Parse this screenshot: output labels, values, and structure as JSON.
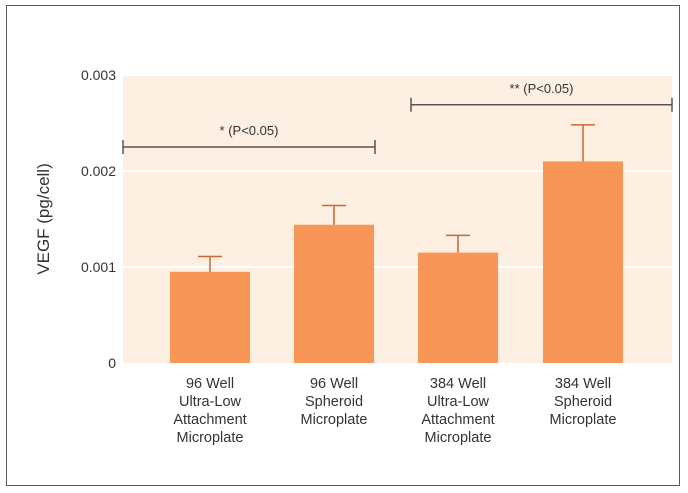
{
  "chart_data": {
    "type": "bar",
    "title": "",
    "xlabel": "",
    "ylabel": "VEGF (pg/cell)",
    "ylim": [
      0,
      0.003
    ],
    "yticks": [
      {
        "value": 0,
        "label": "0"
      },
      {
        "value": 0.001,
        "label": "0.001"
      },
      {
        "value": 0.002,
        "label": "0.002"
      },
      {
        "value": 0.003,
        "label": "0.003"
      }
    ],
    "grid": true,
    "legend": "none",
    "categories": [
      [
        "96 Well",
        "Ultra-Low",
        "Attachment",
        "Microplate"
      ],
      [
        "96 Well",
        "Spheroid",
        "Microplate"
      ],
      [
        "384 Well",
        "Ultra-Low",
        "Attachment",
        "Microplate"
      ],
      [
        "384 Well",
        "Spheroid",
        "Microplate"
      ]
    ],
    "values": [
      0.00095,
      0.00144,
      0.00115,
      0.0021
    ],
    "errors": [
      0.00016,
      0.0002,
      0.00018,
      0.00038
    ],
    "significance": [
      {
        "label": "* (P<0.05)",
        "from": 0,
        "to": 1,
        "y": 0.00225
      },
      {
        "label": "** (P<0.05)",
        "from": 2,
        "to": 3,
        "y": 0.00269
      }
    ],
    "colors": {
      "bar": "#f79656",
      "plot_background": "#fdf0e2",
      "gridline": "#ffffff",
      "error_bar": "#c56a33",
      "bracket": "#555555"
    }
  }
}
